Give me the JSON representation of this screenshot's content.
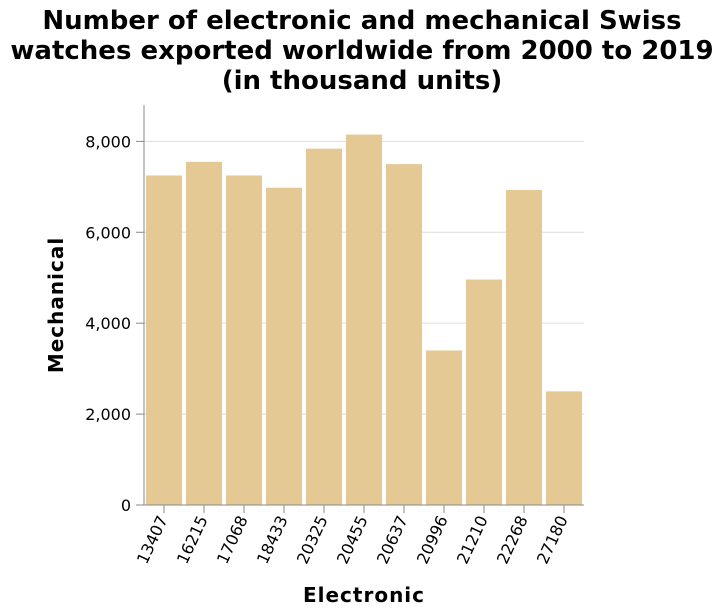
{
  "title_lines": [
    "Number of electronic and mechanical Swiss",
    "watches exported worldwide from 2000 to 2019",
    "(in thousand units)"
  ],
  "colors": {
    "bar": "#e5c994",
    "grid": "#dddddd",
    "axis": "#888888"
  },
  "chart_data": {
    "type": "bar",
    "title": "Number of electronic and mechanical Swiss watches exported worldwide from 2000 to 2019 (in thousand units)",
    "xlabel": "Electronic",
    "ylabel": "Mechanical",
    "categories": [
      "13407",
      "16215",
      "17068",
      "18433",
      "20325",
      "20455",
      "20637",
      "20996",
      "21210",
      "22268",
      "27180"
    ],
    "values": [
      7250,
      7550,
      7250,
      6980,
      7840,
      8150,
      7500,
      3400,
      4960,
      6930,
      2500
    ],
    "ylim": [
      0,
      8800
    ],
    "yticks": [
      0,
      2000,
      4000,
      6000,
      8000
    ],
    "ytick_labels": [
      "0",
      "2,000",
      "4,000",
      "6,000",
      "8,000"
    ],
    "grid": true
  }
}
